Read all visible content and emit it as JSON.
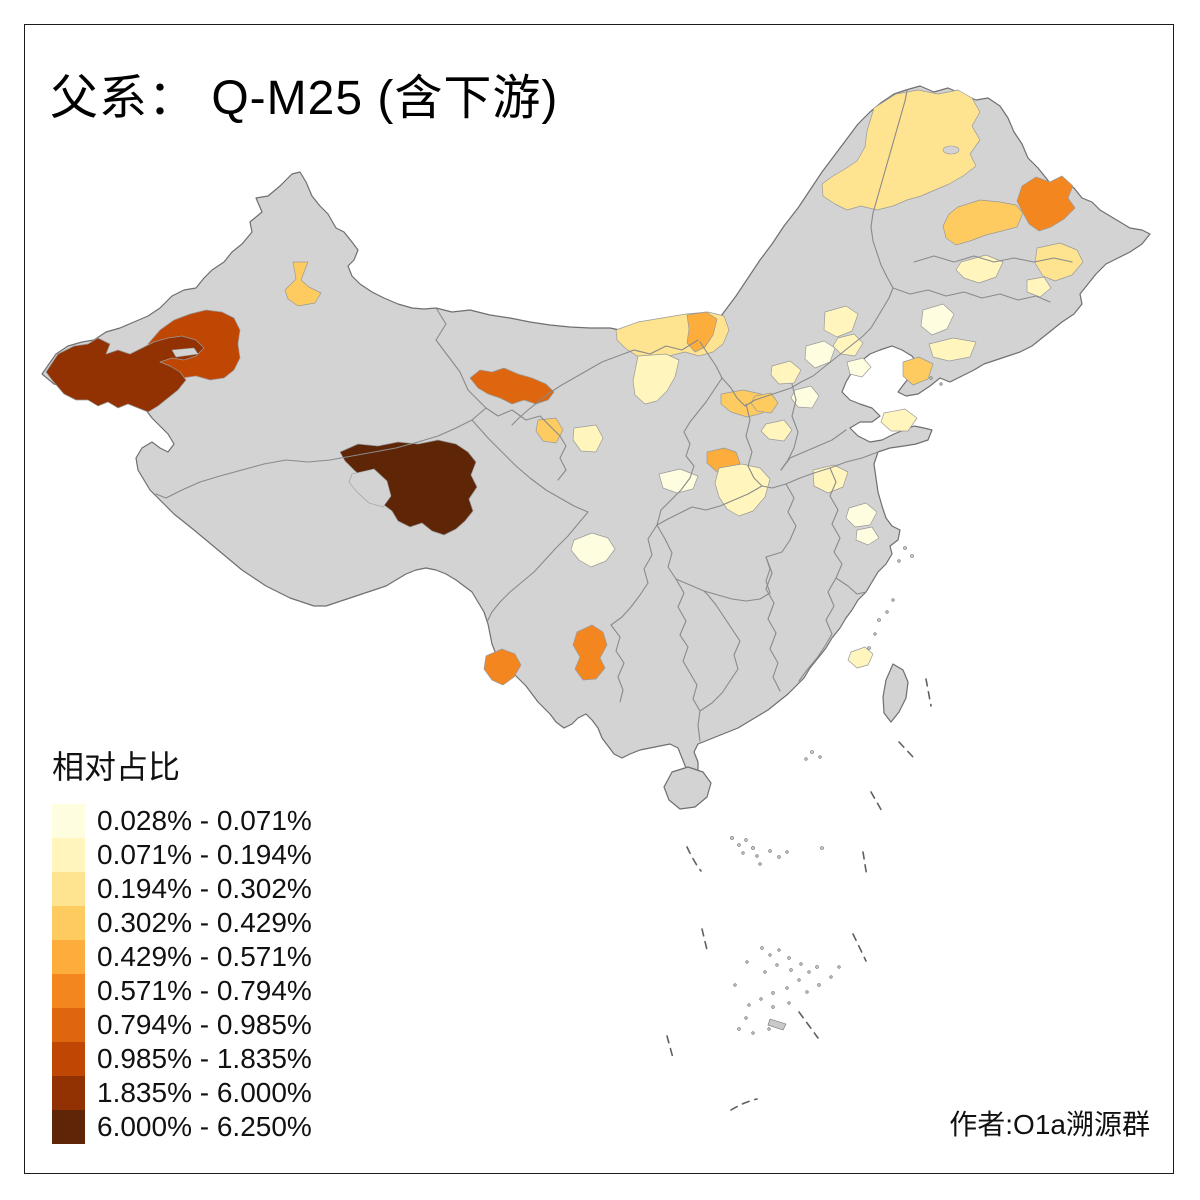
{
  "title": "父系： Q-M25 (含下游)",
  "attribution": "作者:O1a溯源群",
  "legend": {
    "title": "相对占比",
    "classes": [
      {
        "label": "0.028% - 0.071%",
        "color": "#FFFDE0"
      },
      {
        "label": "0.071% - 0.194%",
        "color": "#FFF5BD"
      },
      {
        "label": "0.194% - 0.302%",
        "color": "#FEE390"
      },
      {
        "label": "0.302% - 0.429%",
        "color": "#FDCB5F"
      },
      {
        "label": "0.429% - 0.571%",
        "color": "#FCAD3B"
      },
      {
        "label": "0.571% - 0.794%",
        "color": "#F4861F"
      },
      {
        "label": "0.794% - 0.985%",
        "color": "#DE660E"
      },
      {
        "label": "0.985% - 1.835%",
        "color": "#BF4703"
      },
      {
        "label": "1.835% - 6.000%",
        "color": "#923203"
      },
      {
        "label": "6.000% - 6.250%",
        "color": "#5E2507"
      }
    ]
  },
  "map": {
    "base_fill": "#D3D3D3",
    "province_border_color": "#8A8A8A",
    "coast_color": "#6F6F6F",
    "background": "#FFFFFF",
    "frame_color": "#1B1B1B"
  },
  "chart_data": {
    "type": "choropleth",
    "title": "父系： Q-M25 (含下游)",
    "legend_title": "相对占比",
    "unit": "relative frequency (%)",
    "breaks": [
      0.028,
      0.071,
      0.194,
      0.302,
      0.429,
      0.571,
      0.794,
      0.985,
      1.835,
      6.0,
      6.25
    ],
    "palette": [
      "#FFFDE0",
      "#FFF5BD",
      "#FEE390",
      "#FDCB5F",
      "#FCAD3B",
      "#F4861F",
      "#DE660E",
      "#BF4703",
      "#923203",
      "#5E2507"
    ],
    "base_region_color_no_data": "#D3D3D3",
    "highlighted_regions": [
      {
        "area": "west-xinjiang-kashgar-tip",
        "range": "1.835% - 6.000%"
      },
      {
        "area": "west-xinjiang-aksu",
        "range": "0.985% - 1.835%"
      },
      {
        "area": "north-xinjiang-small",
        "range": "0.302% - 0.429%"
      },
      {
        "area": "south-qinghai",
        "range": "6.000% - 6.250%"
      },
      {
        "area": "west-gansu-corridor",
        "range": "0.794% - 0.985%"
      },
      {
        "area": "central-gansu-small",
        "range": "0.302% - 0.429%"
      },
      {
        "area": "central-gansu-pale",
        "range": "0.071% - 0.194%"
      },
      {
        "area": "west-inner-mongolia-band",
        "range": "0.194% - 0.302%"
      },
      {
        "area": "west-inner-mongolia-core",
        "range": "0.429% - 0.571%"
      },
      {
        "area": "ningxia",
        "range": "0.302% - 0.429%"
      },
      {
        "area": "north-shaanxi",
        "range": "0.429% - 0.571%"
      },
      {
        "area": "guanzhong-shaanxi",
        "range": "0.071% - 0.194%"
      },
      {
        "area": "shanxi-hebei-beijing-cluster",
        "range": "0.028% - 0.194%"
      },
      {
        "area": "hulunbuir-northeast",
        "range": "0.194% - 0.302%"
      },
      {
        "area": "east-heilongjiang",
        "range": "0.571% - 0.794%"
      },
      {
        "area": "central-heilongjiang-band",
        "range": "0.302% - 0.429%"
      },
      {
        "area": "jilin-patches",
        "range": "0.071% - 0.302%"
      },
      {
        "area": "liaodong-dalian",
        "range": "0.302% - 0.429%"
      },
      {
        "area": "shandong-patches",
        "range": "0.071% - 0.194%"
      },
      {
        "area": "jiangsu-anhui-patches",
        "range": "0.028% - 0.194%"
      },
      {
        "area": "west-sichuan-small",
        "range": "0.028% - 0.071%"
      },
      {
        "area": "west-yunnan",
        "range": "0.571% - 0.794%"
      },
      {
        "area": "central-yunnan",
        "range": "0.571% - 0.794%"
      },
      {
        "area": "coastal-fujian-small",
        "range": "0.071% - 0.194%"
      }
    ]
  }
}
